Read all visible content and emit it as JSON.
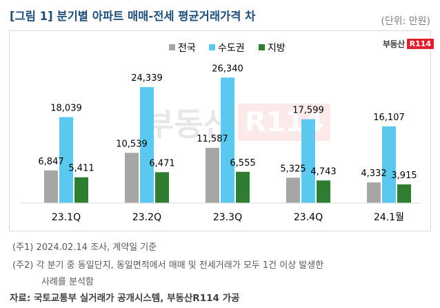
{
  "title": "[그림 1] 분기별 아파트 매매-전세 평균거래가격 차",
  "unit": "(단위: 만원)",
  "brand": {
    "text": "부동산",
    "mark": "R114"
  },
  "watermark": {
    "text": "부동산",
    "mark": "R114"
  },
  "notes": [
    "(주1) 2024.02.14 조사, 계약일 기준",
    "(주2) 각 분기 중 동일단지, 동일면적에서 매매 및 전세거래가 모두 1건 이상 발생한",
    "사례를 분석함"
  ],
  "source": "자료: 국토교통부 실거래가 공개시스템, 부동산R114 가공",
  "colors": {
    "전국": "#a6a6a6",
    "수도권": "#5bc8f0",
    "지방": "#2e7d32"
  },
  "chart_data": {
    "type": "bar",
    "categories": [
      "23.1Q",
      "23.2Q",
      "23.3Q",
      "23.4Q",
      "24.1월"
    ],
    "series": [
      {
        "name": "전국",
        "values": [
          6847,
          10539,
          11587,
          5325,
          4332
        ]
      },
      {
        "name": "수도권",
        "values": [
          18039,
          24339,
          26340,
          17599,
          16107
        ]
      },
      {
        "name": "지방",
        "values": [
          5411,
          6471,
          6555,
          4743,
          3915
        ]
      }
    ],
    "legend": "top-center",
    "grid": false,
    "xlabel": "",
    "ylabel": "",
    "ylim": [
      0,
      29000
    ]
  }
}
